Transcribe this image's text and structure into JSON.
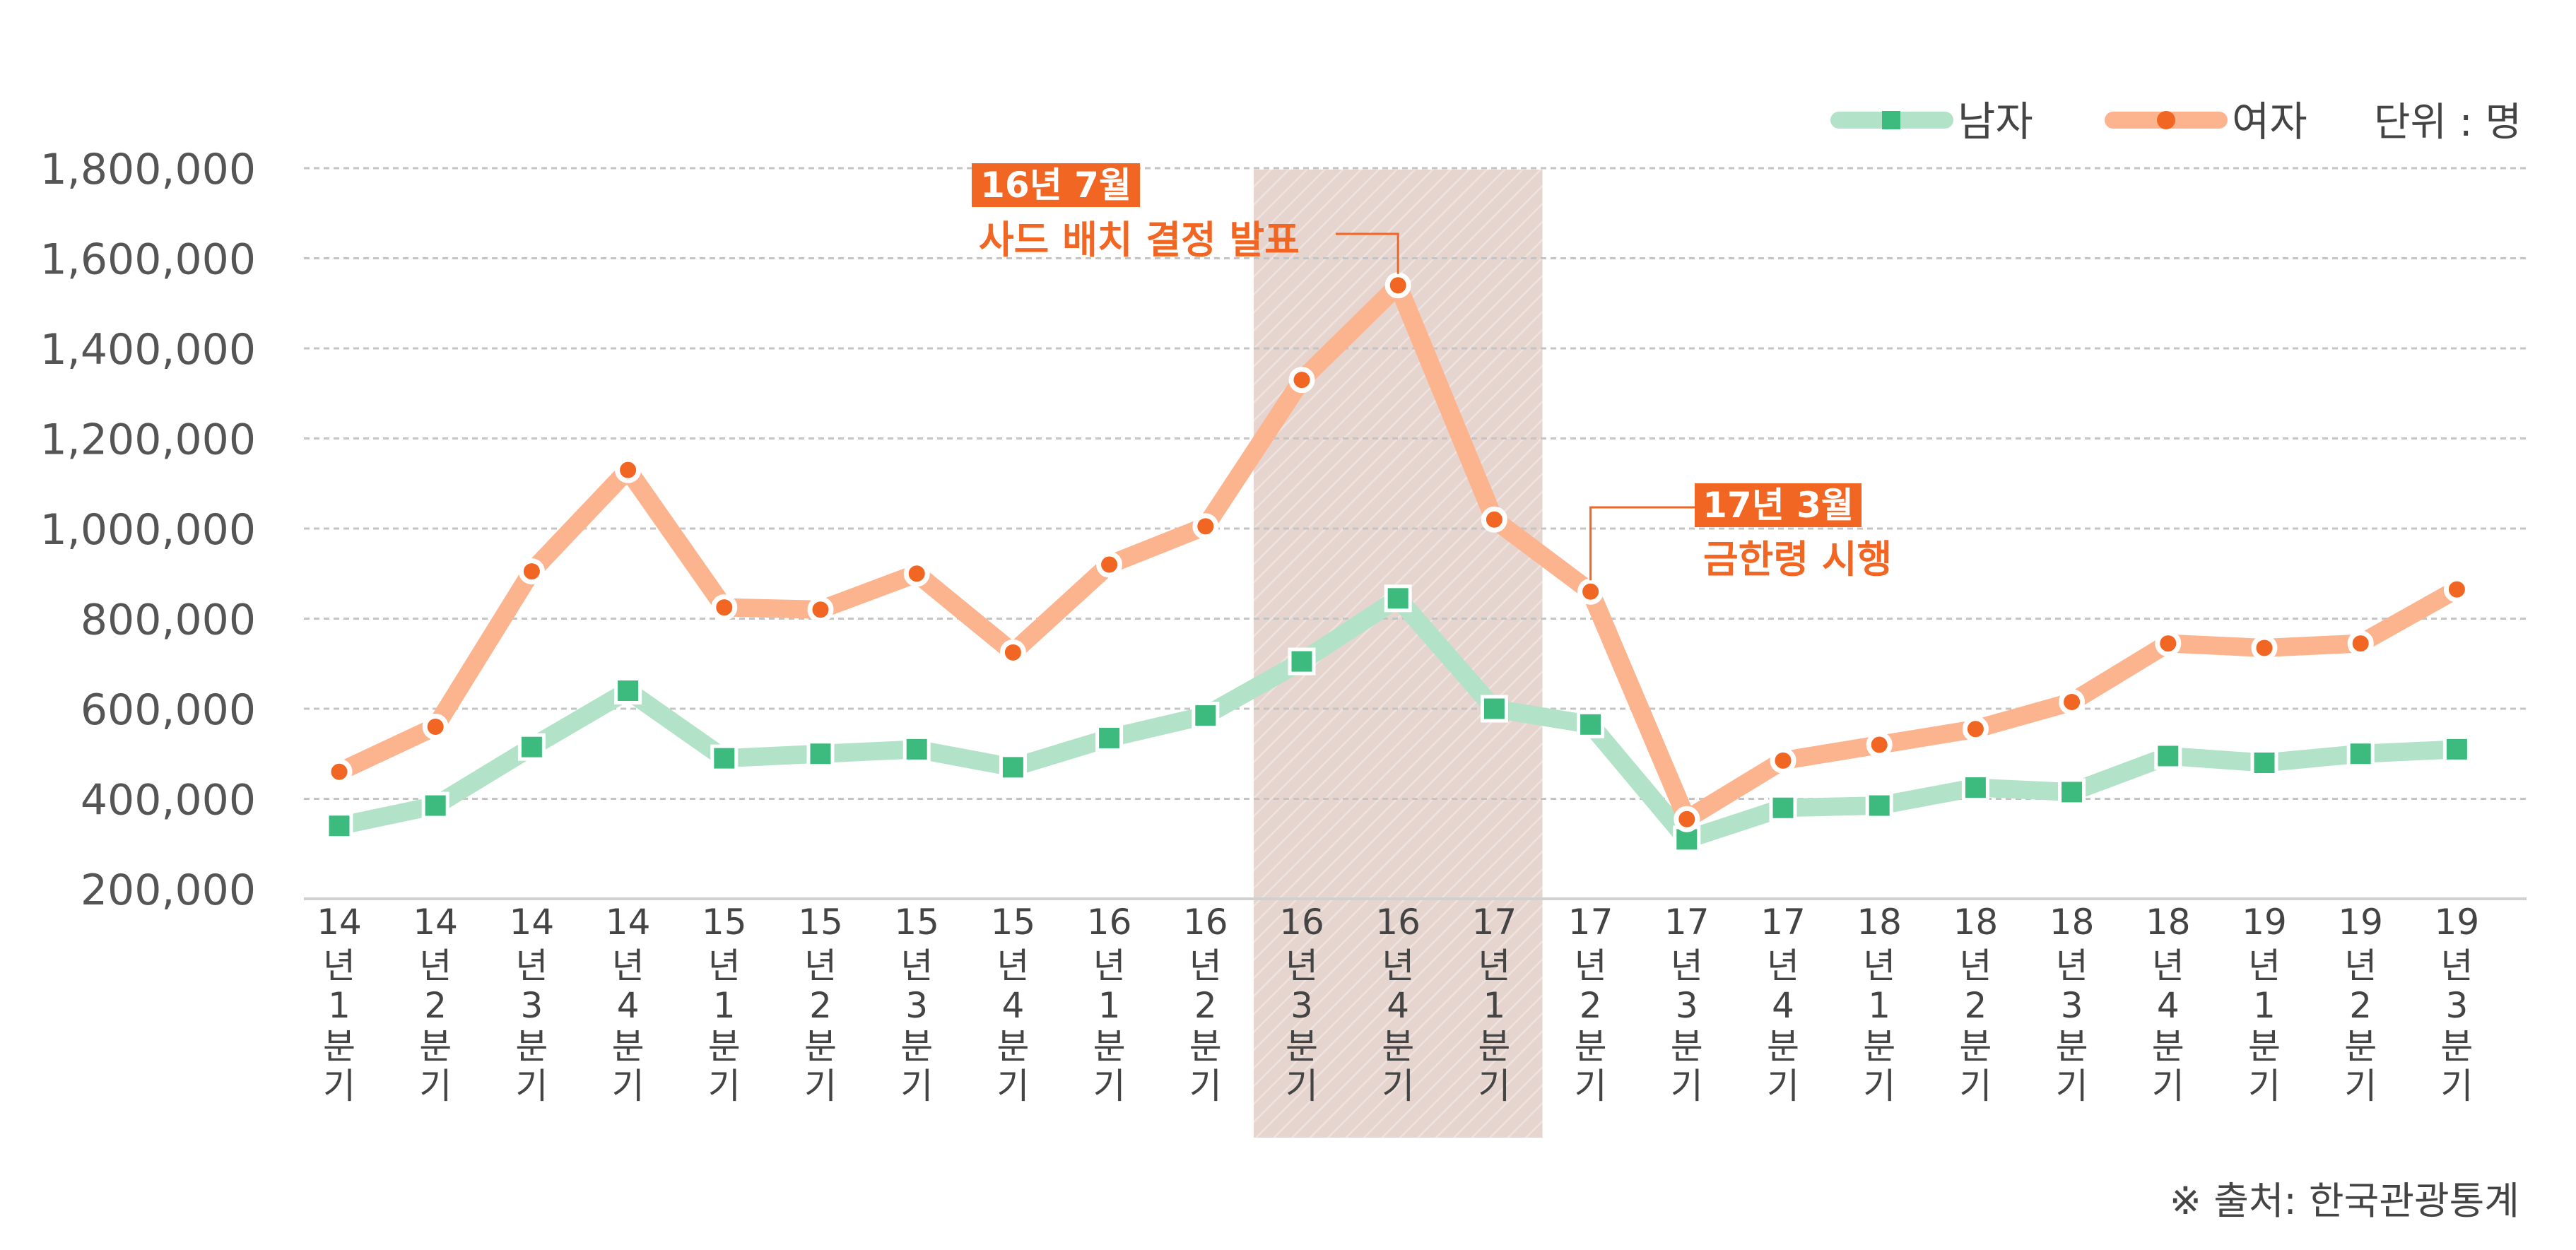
{
  "chart_data": {
    "type": "line",
    "categories": [
      "14년1분기",
      "14년2분기",
      "14년3분기",
      "14년4분기",
      "15년1분기",
      "15년2분기",
      "15년3분기",
      "15년4분기",
      "16년1분기",
      "16년2분기",
      "16년3분기",
      "16년4분기",
      "17년1분기",
      "17년2분기",
      "17년3분기",
      "17년4분기",
      "18년1분기",
      "18년2분기",
      "18년3분기",
      "18년4분기",
      "19년1분기",
      "19년2분기",
      "19년3분기"
    ],
    "category_label_parts": [
      [
        "14",
        "년",
        "1",
        "분",
        "기"
      ],
      [
        "14",
        "년",
        "2",
        "분",
        "기"
      ],
      [
        "14",
        "년",
        "3",
        "분",
        "기"
      ],
      [
        "14",
        "년",
        "4",
        "분",
        "기"
      ],
      [
        "15",
        "년",
        "1",
        "분",
        "기"
      ],
      [
        "15",
        "년",
        "2",
        "분",
        "기"
      ],
      [
        "15",
        "년",
        "3",
        "분",
        "기"
      ],
      [
        "15",
        "년",
        "4",
        "분",
        "기"
      ],
      [
        "16",
        "년",
        "1",
        "분",
        "기"
      ],
      [
        "16",
        "년",
        "2",
        "분",
        "기"
      ],
      [
        "16",
        "년",
        "3",
        "분",
        "기"
      ],
      [
        "16",
        "년",
        "4",
        "분",
        "기"
      ],
      [
        "17",
        "년",
        "1",
        "분",
        "기"
      ],
      [
        "17",
        "년",
        "2",
        "분",
        "기"
      ],
      [
        "17",
        "년",
        "3",
        "분",
        "기"
      ],
      [
        "17",
        "년",
        "4",
        "분",
        "기"
      ],
      [
        "18",
        "년",
        "1",
        "분",
        "기"
      ],
      [
        "18",
        "년",
        "2",
        "분",
        "기"
      ],
      [
        "18",
        "년",
        "3",
        "분",
        "기"
      ],
      [
        "18",
        "년",
        "4",
        "분",
        "기"
      ],
      [
        "19",
        "년",
        "1",
        "분",
        "기"
      ],
      [
        "19",
        "년",
        "2",
        "분",
        "기"
      ],
      [
        "19",
        "년",
        "3",
        "분",
        "기"
      ]
    ],
    "series": [
      {
        "name": "남자",
        "marker": "square",
        "line_color": "#b2e3c8",
        "marker_color": "#3dbb7f",
        "values": [
          340000,
          385000,
          515000,
          640000,
          490000,
          500000,
          510000,
          470000,
          535000,
          585000,
          705000,
          845000,
          600000,
          565000,
          310000,
          380000,
          385000,
          425000,
          415000,
          495000,
          480000,
          500000,
          510000
        ]
      },
      {
        "name": "여자",
        "marker": "circle",
        "line_color": "#fcb48f",
        "marker_color": "#f16622",
        "values": [
          460000,
          560000,
          905000,
          1130000,
          825000,
          820000,
          900000,
          725000,
          920000,
          1005000,
          1330000,
          1540000,
          1020000,
          860000,
          355000,
          485000,
          520000,
          555000,
          615000,
          745000,
          735000,
          745000,
          865000
        ]
      }
    ],
    "y_ticks": [
      "1,800,000",
      "1,600,000",
      "1,400,000",
      "1,200,000",
      "1,000,000",
      "800,000",
      "600,000",
      "400,000",
      "200,000"
    ],
    "y_tick_values": [
      1800000,
      1600000,
      1400000,
      1200000,
      1000000,
      800000,
      600000,
      400000,
      200000
    ],
    "ylim": [
      200000,
      1800000
    ],
    "grid": true,
    "legend_position": "top-right",
    "unit_label": "단위 : 명",
    "highlight_range": [
      "16년3분기",
      "17년1분기"
    ],
    "highlight_color": "#e5d3ce",
    "annotations": [
      {
        "anchor": "16년4분기",
        "series": "여자",
        "date_label": "16년 7월",
        "text": "사드 배치 결정 발표",
        "color": "#f16622"
      },
      {
        "anchor": "17년2분기",
        "series": "여자",
        "date_label": "17년 3월",
        "text": "금한령 시행",
        "color": "#f16622"
      }
    ],
    "source": "※ 출처: 한국관광통계"
  }
}
